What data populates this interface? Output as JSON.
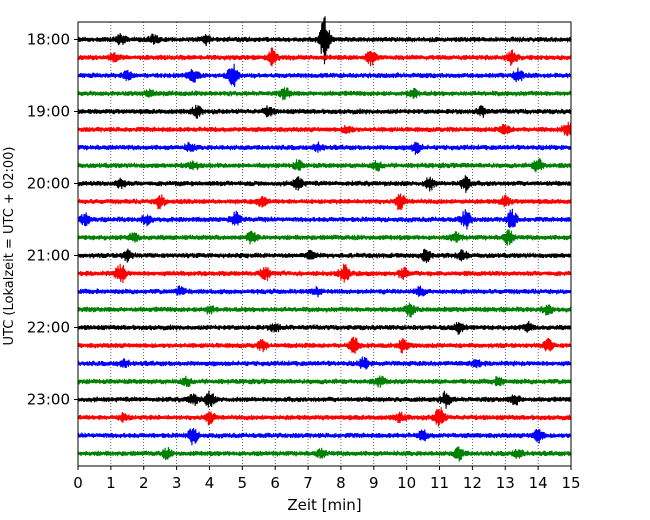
{
  "chart_data": {
    "type": "line",
    "subtype": "helicorder-seismogram",
    "title": "",
    "xlabel": "Zeit  [min]",
    "ylabel": "UTC (Lokalzeit = UTC + 02:00)",
    "xlim": [
      0,
      15
    ],
    "x_ticks": [
      0,
      1,
      2,
      3,
      4,
      5,
      6,
      7,
      8,
      9,
      10,
      11,
      12,
      13,
      14,
      15
    ],
    "y_ticks": [
      "18:00",
      "19:00",
      "20:00",
      "21:00",
      "22:00",
      "23:00"
    ],
    "grid": {
      "x": true,
      "y": false,
      "style": "dotted"
    },
    "line_colors": [
      "#000000",
      "#ff0000",
      "#0000ff",
      "#008000"
    ],
    "traces": [
      {
        "start": "18:00",
        "color": "#000000",
        "events": [
          [
            7.5,
            1.6
          ],
          [
            1.3,
            0.35
          ],
          [
            2.3,
            0.3
          ],
          [
            3.9,
            0.3
          ]
        ]
      },
      {
        "start": "18:15",
        "color": "#ff0000",
        "events": [
          [
            5.9,
            0.55
          ],
          [
            8.9,
            0.5
          ],
          [
            13.2,
            0.45
          ],
          [
            1.1,
            0.25
          ]
        ]
      },
      {
        "start": "18:30",
        "color": "#0000ff",
        "events": [
          [
            4.7,
            0.8
          ],
          [
            3.5,
            0.45
          ],
          [
            13.4,
            0.4
          ],
          [
            1.5,
            0.3
          ]
        ]
      },
      {
        "start": "18:45",
        "color": "#008000",
        "events": [
          [
            6.3,
            0.35
          ],
          [
            10.2,
            0.3
          ],
          [
            2.2,
            0.25
          ]
        ]
      },
      {
        "start": "19:00",
        "color": "#000000",
        "events": [
          [
            3.6,
            0.35
          ],
          [
            5.8,
            0.3
          ],
          [
            12.3,
            0.3
          ]
        ]
      },
      {
        "start": "19:15",
        "color": "#ff0000",
        "events": [
          [
            14.9,
            0.45
          ],
          [
            13.0,
            0.3
          ],
          [
            8.2,
            0.25
          ]
        ]
      },
      {
        "start": "19:30",
        "color": "#0000ff",
        "events": [
          [
            10.3,
            0.35
          ],
          [
            3.4,
            0.25
          ],
          [
            7.3,
            0.25
          ]
        ]
      },
      {
        "start": "19:45",
        "color": "#008000",
        "events": [
          [
            3.5,
            0.3
          ],
          [
            6.7,
            0.3
          ],
          [
            14.0,
            0.45
          ],
          [
            9.1,
            0.25
          ]
        ]
      },
      {
        "start": "20:00",
        "color": "#000000",
        "events": [
          [
            11.8,
            0.5
          ],
          [
            6.7,
            0.4
          ],
          [
            10.7,
            0.4
          ],
          [
            1.3,
            0.3
          ]
        ]
      },
      {
        "start": "20:15",
        "color": "#ff0000",
        "events": [
          [
            9.8,
            0.55
          ],
          [
            2.5,
            0.45
          ],
          [
            13.0,
            0.35
          ],
          [
            5.6,
            0.3
          ]
        ]
      },
      {
        "start": "20:30",
        "color": "#0000ff",
        "events": [
          [
            11.8,
            0.6
          ],
          [
            13.2,
            0.65
          ],
          [
            4.8,
            0.45
          ],
          [
            2.1,
            0.35
          ],
          [
            0.2,
            0.35
          ]
        ]
      },
      {
        "start": "20:45",
        "color": "#008000",
        "events": [
          [
            5.3,
            0.45
          ],
          [
            13.1,
            0.45
          ],
          [
            11.5,
            0.3
          ],
          [
            1.7,
            0.3
          ]
        ]
      },
      {
        "start": "21:00",
        "color": "#000000",
        "events": [
          [
            10.6,
            0.4
          ],
          [
            1.5,
            0.35
          ],
          [
            11.7,
            0.3
          ],
          [
            7.1,
            0.25
          ]
        ]
      },
      {
        "start": "21:15",
        "color": "#ff0000",
        "events": [
          [
            1.3,
            0.65
          ],
          [
            8.1,
            0.55
          ],
          [
            5.7,
            0.45
          ],
          [
            9.9,
            0.35
          ]
        ]
      },
      {
        "start": "21:30",
        "color": "#0000ff",
        "events": [
          [
            3.1,
            0.3
          ],
          [
            10.4,
            0.3
          ],
          [
            7.3,
            0.25
          ]
        ]
      },
      {
        "start": "21:45",
        "color": "#008000",
        "events": [
          [
            10.1,
            0.45
          ],
          [
            14.3,
            0.35
          ],
          [
            4.0,
            0.25
          ]
        ]
      },
      {
        "start": "22:00",
        "color": "#000000",
        "events": [
          [
            11.6,
            0.35
          ],
          [
            13.7,
            0.3
          ],
          [
            6.0,
            0.25
          ]
        ]
      },
      {
        "start": "22:15",
        "color": "#ff0000",
        "events": [
          [
            8.4,
            0.5
          ],
          [
            9.9,
            0.45
          ],
          [
            14.3,
            0.4
          ],
          [
            5.6,
            0.3
          ]
        ]
      },
      {
        "start": "22:30",
        "color": "#0000ff",
        "events": [
          [
            8.7,
            0.35
          ],
          [
            1.4,
            0.25
          ],
          [
            12.1,
            0.25
          ]
        ]
      },
      {
        "start": "22:45",
        "color": "#008000",
        "events": [
          [
            9.2,
            0.3
          ],
          [
            3.3,
            0.25
          ],
          [
            12.8,
            0.25
          ]
        ]
      },
      {
        "start": "23:00",
        "color": "#000000",
        "events": [
          [
            4.0,
            0.5
          ],
          [
            11.2,
            0.5
          ],
          [
            3.5,
            0.35
          ],
          [
            13.3,
            0.3
          ]
        ]
      },
      {
        "start": "23:15",
        "color": "#ff0000",
        "events": [
          [
            11.0,
            0.7
          ],
          [
            4.0,
            0.4
          ],
          [
            9.8,
            0.3
          ],
          [
            1.4,
            0.25
          ]
        ]
      },
      {
        "start": "23:30",
        "color": "#0000ff",
        "events": [
          [
            3.5,
            0.55
          ],
          [
            14.0,
            0.45
          ],
          [
            10.5,
            0.3
          ]
        ]
      },
      {
        "start": "23:45",
        "color": "#008000",
        "events": [
          [
            11.6,
            0.45
          ],
          [
            2.7,
            0.3
          ],
          [
            13.4,
            0.3
          ],
          [
            7.4,
            0.25
          ]
        ]
      }
    ]
  }
}
